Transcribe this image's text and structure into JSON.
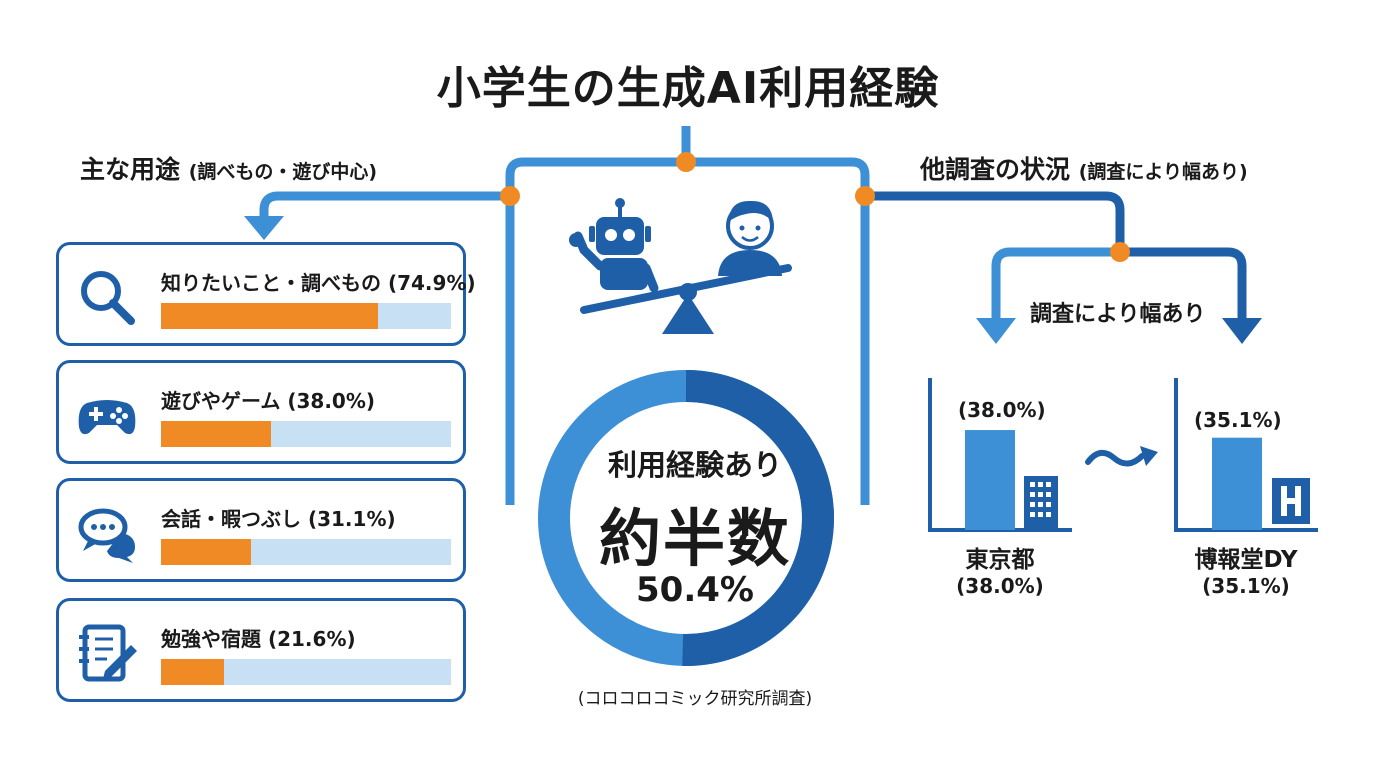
{
  "title": "小学生の生成AI利用経験",
  "left_section": {
    "heading": "主な用途",
    "subheading": "(調べもの・遊び中心)",
    "items": [
      {
        "label": "知りたいこと・調べもの (74.9%)",
        "value": 74.9,
        "icon": "magnifier-icon"
      },
      {
        "label": "遊びやゲーム (38.0%)",
        "value": 38.0,
        "icon": "gamepad-icon"
      },
      {
        "label": "会話・暇つぶし (31.1%)",
        "value": 31.1,
        "icon": "chat-bubbles-icon"
      },
      {
        "label": "勉強や宿題 (21.6%)",
        "value": 21.6,
        "icon": "notebook-pencil-icon"
      }
    ]
  },
  "center": {
    "ring_label": "利用経験あり",
    "ring_value": "約半数",
    "ring_percent": "50.4%",
    "ring_fraction": 0.504,
    "source": "(コロコロコミック研究所調査)",
    "icons": [
      "robot-icon",
      "child-icon",
      "seesaw-icon"
    ]
  },
  "right_section": {
    "heading": "他調査の状況",
    "subheading": "(調査により幅あり)",
    "branch_label": "調査により幅あり",
    "tilde": "〜",
    "charts": [
      {
        "value_label": "(38.0%)",
        "value": 38.0,
        "name": "東京都",
        "sub": "(38.0%)",
        "icon": "building-icon"
      },
      {
        "value_label": "(35.1%)",
        "value": 35.1,
        "name": "博報堂DY",
        "sub": "(35.1%)",
        "icon": "h-logo-icon"
      }
    ]
  },
  "colors": {
    "dark_blue": "#1f5fa8",
    "mid_blue": "#3d8fd6",
    "light_blue": "#c7e0f4",
    "orange": "#f08a24"
  }
}
